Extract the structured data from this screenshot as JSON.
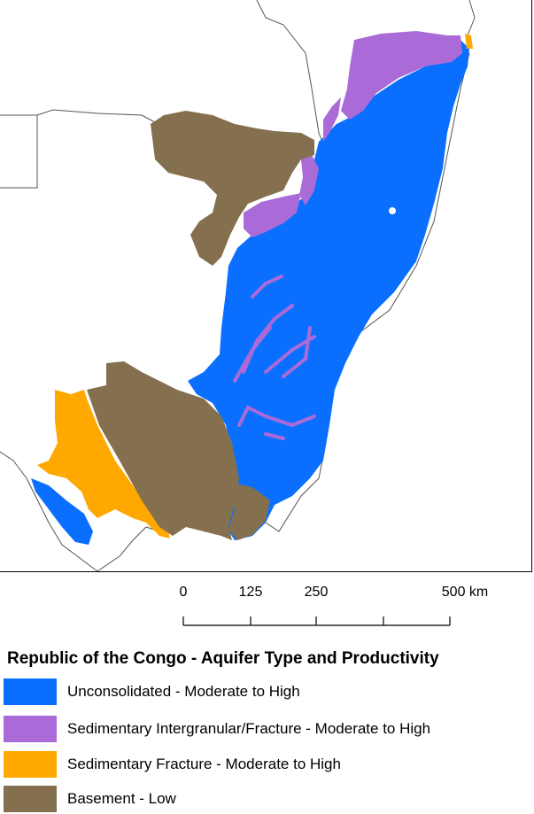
{
  "map": {
    "colors": {
      "unconsolidated": "#0a6fff",
      "sed_intergranular": "#aa6bd8",
      "sed_fracture": "#ffa800",
      "basement": "#84704f",
      "background": "#ffffff",
      "borders": "#555555"
    }
  },
  "scale_bar": {
    "ticks": [
      "0",
      "125",
      "250",
      "500 km"
    ]
  },
  "legend": {
    "title": "Republic of the Congo - Aquifer Type and Productivity",
    "items": [
      {
        "label": "Unconsolidated - Moderate to High",
        "color": "#0a6fff"
      },
      {
        "label": "Sedimentary Intergranular/Fracture - Moderate to High",
        "color": "#aa6bd8"
      },
      {
        "label": "Sedimentary Fracture - Moderate to High",
        "color": "#ffa800"
      },
      {
        "label": "Basement - Low",
        "color": "#84704f"
      }
    ]
  }
}
